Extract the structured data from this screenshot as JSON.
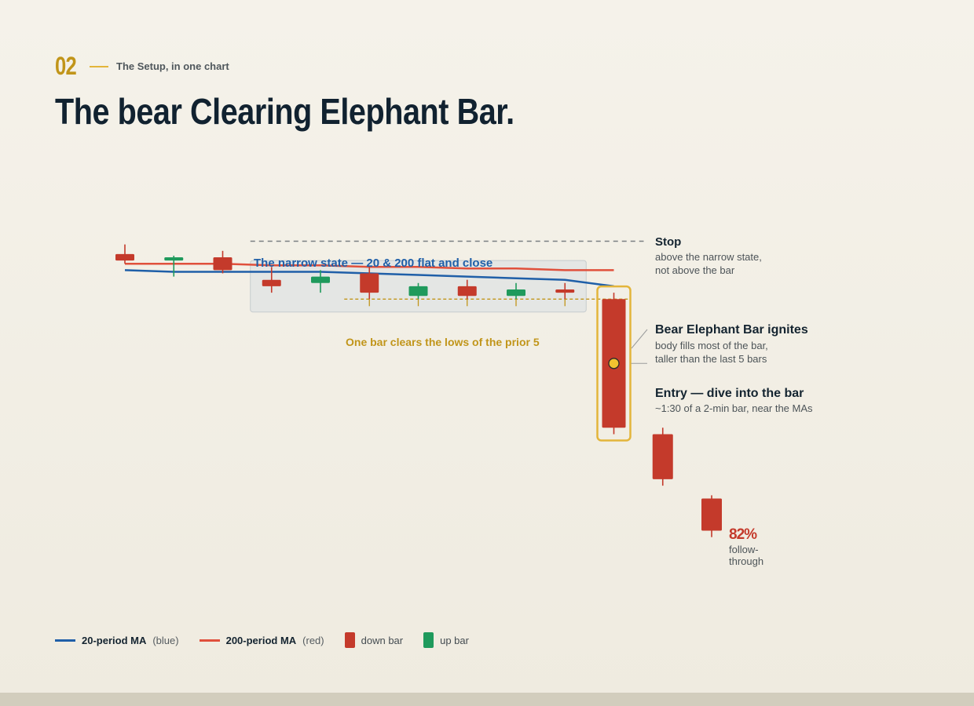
{
  "header": {
    "section_number": "02",
    "eyebrow": "The Setup, in one chart",
    "title": "The bear Clearing Elephant Bar."
  },
  "colors": {
    "ma20": "#1f5fa8",
    "ma200": "#e0503c",
    "down": "#c43a2b",
    "up": "#1f9a5c",
    "accent": "#e3b53b",
    "gold_text": "#c1951a",
    "narrow_zone": "#dfe3e3",
    "stop_line": "#7b7f82"
  },
  "chart_data": {
    "type": "candlestick",
    "price_scale": "unlabeled",
    "bars": [
      {
        "dir": "down",
        "open": 99.6,
        "close": 99.4,
        "high": 99.9,
        "low": 99.3
      },
      {
        "dir": "up",
        "open": 99.4,
        "close": 99.5,
        "high": 99.55,
        "low": 98.9
      },
      {
        "dir": "down",
        "open": 99.5,
        "close": 99.1,
        "high": 99.7,
        "low": 99.0
      },
      {
        "dir": "down",
        "open": 98.8,
        "close": 98.6,
        "high": 99.2,
        "low": 98.4
      },
      {
        "dir": "up",
        "open": 98.7,
        "close": 98.9,
        "high": 99.1,
        "low": 98.4
      },
      {
        "dir": "down",
        "open": 99.0,
        "close": 98.4,
        "high": 99.2,
        "low": 98.2
      },
      {
        "dir": "up",
        "open": 98.3,
        "close": 98.6,
        "high": 98.7,
        "low": 98.2
      },
      {
        "dir": "down",
        "open": 98.6,
        "close": 98.3,
        "high": 98.8,
        "low": 98.2
      },
      {
        "dir": "up",
        "open": 98.3,
        "close": 98.5,
        "high": 98.7,
        "low": 98.2
      },
      {
        "dir": "down",
        "open": 98.5,
        "close": 98.4,
        "high": 98.7,
        "low": 98.2
      },
      {
        "dir": "down",
        "open": 98.2,
        "close": 94.2,
        "high": 98.4,
        "low": 94.0
      },
      {
        "dir": "down",
        "open": 94.0,
        "close": 92.6,
        "high": 94.2,
        "low": 92.4
      },
      {
        "dir": "down",
        "open": 92.0,
        "close": 91.0,
        "high": 92.1,
        "low": 90.8
      }
    ],
    "ma20": [
      99.1,
      99.05,
      99.05,
      99.05,
      99.05,
      99.0,
      98.95,
      98.9,
      98.85,
      98.8,
      98.6
    ],
    "ma200": [
      99.3,
      99.3,
      99.3,
      99.25,
      99.25,
      99.2,
      99.2,
      99.15,
      99.15,
      99.1,
      99.1
    ],
    "stop_price": 100.0,
    "prior5_low": 98.2,
    "entry_price": 96.2,
    "narrow_zone": {
      "from_bar": 3,
      "to_bar": 9
    },
    "legend": [
      {
        "kind": "line",
        "series": "ma20",
        "label": "20-period MA",
        "note": "(blue)"
      },
      {
        "kind": "line",
        "series": "ma200",
        "label": "200-period MA",
        "note": "(red)"
      },
      {
        "kind": "box",
        "series": "down",
        "label": "down bar"
      },
      {
        "kind": "box",
        "series": "up",
        "label": "up bar"
      }
    ]
  },
  "annotations": {
    "narrow_state": "The narrow state — 20 & 200 flat and close",
    "clears_lows": "One bar clears the lows of the prior 5",
    "stop_title": "Stop",
    "stop_line1": "above the narrow state,",
    "stop_line2": "not above the bar",
    "ignite_title": "Bear Elephant Bar ignites",
    "ignite_line1": "body fills most of the bar,",
    "ignite_line2": "taller than the last 5 bars",
    "entry_title": "Entry — dive into the bar",
    "entry_line1": "~1:30 of a 2-min bar, near the MAs",
    "followthrough_pct": "82%",
    "followthrough_line1": "follow-",
    "followthrough_line2": "through"
  }
}
